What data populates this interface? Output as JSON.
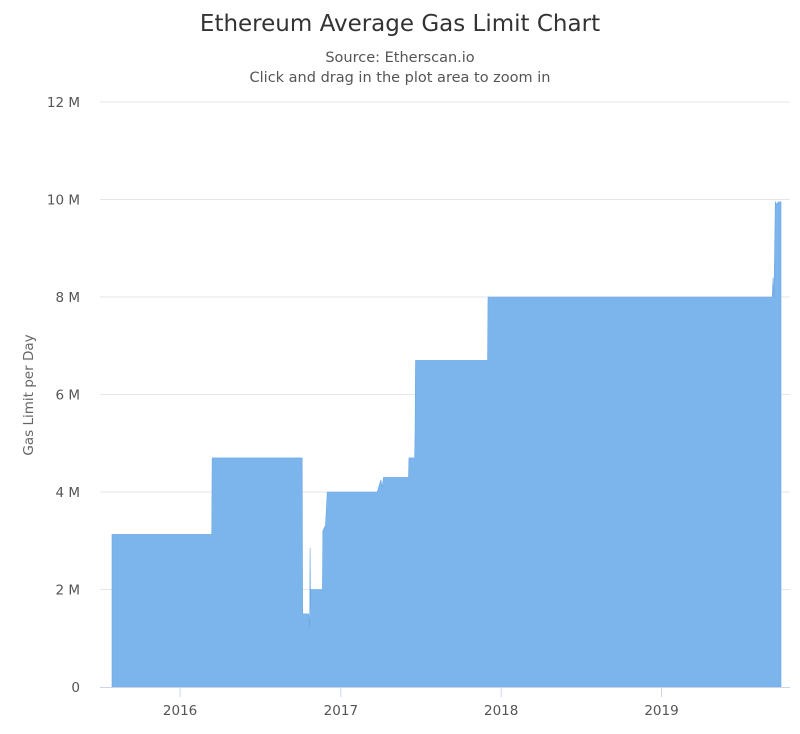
{
  "chart_data": {
    "type": "area",
    "title": "Ethereum Average Gas Limit Chart",
    "subtitle_lines": [
      "Source: Etherscan.io",
      "Click and drag in the plot area to zoom in"
    ],
    "xlabel": "",
    "ylabel": "Gas Limit per Day",
    "ylim": [
      0,
      12000000
    ],
    "xlim": [
      "2015-07-30",
      "2019-09-30"
    ],
    "y_ticks": [
      {
        "value": 0,
        "label": "0"
      },
      {
        "value": 2000000,
        "label": "2 M"
      },
      {
        "value": 4000000,
        "label": "4 M"
      },
      {
        "value": 6000000,
        "label": "6 M"
      },
      {
        "value": 8000000,
        "label": "8 M"
      },
      {
        "value": 10000000,
        "label": "10 M"
      },
      {
        "value": 12000000,
        "label": "12 M"
      }
    ],
    "x_ticks": [
      {
        "value": "2016-01-01",
        "label": "2016"
      },
      {
        "value": "2017-01-01",
        "label": "2017"
      },
      {
        "value": "2018-01-01",
        "label": "2018"
      },
      {
        "value": "2019-01-01",
        "label": "2019"
      }
    ],
    "grid": {
      "horizontal": true,
      "vertical": false
    },
    "legend": "none",
    "colors": {
      "fill": "#7cb5ec",
      "grid": "#e6e6e6",
      "axis": "#ccd6eb",
      "text": "#333333",
      "tick_text": "#555555"
    },
    "series": [
      {
        "name": "",
        "x": [
          "2015-07-30",
          "2016-03-13",
          "2016-03-14",
          "2016-10-05",
          "2016-10-06",
          "2016-10-20",
          "2016-10-22",
          "2016-10-23",
          "2016-10-24",
          "2016-10-25",
          "2016-10-26",
          "2016-11-20",
          "2016-11-21",
          "2016-11-26",
          "2016-11-27",
          "2016-12-01",
          "2017-03-25",
          "2017-04-02",
          "2017-04-05",
          "2017-04-08",
          "2017-04-12",
          "2017-06-04",
          "2017-06-05",
          "2017-06-18",
          "2017-06-19",
          "2017-06-20",
          "2017-12-01",
          "2017-12-02",
          "2019-09-10",
          "2019-09-12",
          "2019-09-14",
          "2019-09-17",
          "2019-09-20",
          "2019-09-24",
          "2019-09-30"
        ],
        "y": [
          3130000,
          3130000,
          4700000,
          4700000,
          1500000,
          1500000,
          1200000,
          2850000,
          1600000,
          2000000,
          2000000,
          2000000,
          3200000,
          3300000,
          3300000,
          4000000,
          4000000,
          4250000,
          4100000,
          4300000,
          4300000,
          4300000,
          4700000,
          4700000,
          5300000,
          6700000,
          6700000,
          8000000,
          8000000,
          8400000,
          8000000,
          9950000,
          9900000,
          9950000,
          9950000
        ]
      }
    ]
  }
}
